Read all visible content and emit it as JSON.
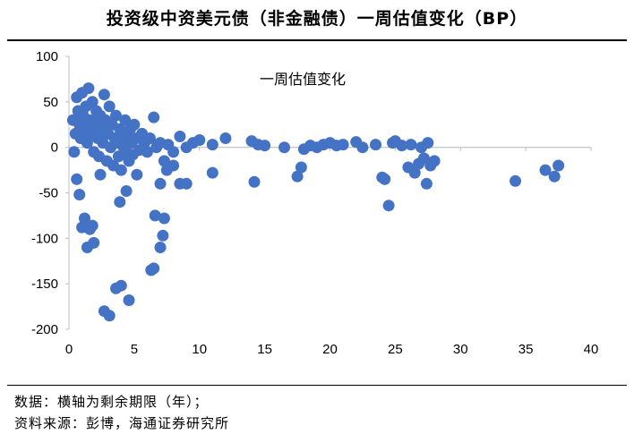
{
  "header": {
    "title": "投资级中资美元债（非金融债）一周估值变化（BP）"
  },
  "footer": {
    "note1": "数据：横轴为剩余期限（年）；",
    "note2": "资料来源：彭博，海通证券研究所"
  },
  "chart_data": {
    "type": "scatter",
    "title": "一周估值变化",
    "xlabel": "",
    "ylabel": "",
    "xlim": [
      0,
      40
    ],
    "ylim": [
      -200,
      100
    ],
    "xticks": [
      0,
      5,
      10,
      15,
      20,
      25,
      30,
      35,
      40
    ],
    "yticks": [
      100,
      50,
      0,
      -50,
      -100,
      -150,
      -200
    ],
    "grid": false,
    "legend": "none",
    "marker_color": "#4472c4",
    "series": [
      {
        "points": [
          [
            0.3,
            30
          ],
          [
            0.5,
            15
          ],
          [
            0.6,
            55
          ],
          [
            0.7,
            40
          ],
          [
            0.8,
            25
          ],
          [
            0.9,
            10
          ],
          [
            1.0,
            60
          ],
          [
            1.1,
            35
          ],
          [
            1.2,
            20
          ],
          [
            1.3,
            45
          ],
          [
            1.4,
            5
          ],
          [
            1.5,
            65
          ],
          [
            1.6,
            30
          ],
          [
            1.7,
            15
          ],
          [
            1.8,
            50
          ],
          [
            1.9,
            -5
          ],
          [
            2.0,
            25
          ],
          [
            2.1,
            40
          ],
          [
            2.2,
            10
          ],
          [
            2.3,
            -10
          ],
          [
            2.4,
            35
          ],
          [
            2.5,
            20
          ],
          [
            2.6,
            5
          ],
          [
            2.7,
            58
          ],
          [
            2.8,
            30
          ],
          [
            2.9,
            -15
          ],
          [
            3.0,
            15
          ],
          [
            3.1,
            45
          ],
          [
            3.2,
            0
          ],
          [
            3.3,
            25
          ],
          [
            3.4,
            -20
          ],
          [
            3.5,
            10
          ],
          [
            3.6,
            35
          ],
          [
            3.7,
            5
          ],
          [
            3.8,
            -10
          ],
          [
            3.9,
            20
          ],
          [
            4.0,
            -25
          ],
          [
            4.1,
            15
          ],
          [
            4.2,
            0
          ],
          [
            4.3,
            30
          ],
          [
            4.4,
            -5
          ],
          [
            4.5,
            10
          ],
          [
            4.6,
            -15
          ],
          [
            4.7,
            20
          ],
          [
            4.8,
            5
          ],
          [
            4.9,
            -8
          ],
          [
            5.0,
            25
          ],
          [
            5.2,
            10
          ],
          [
            5.4,
            -3
          ],
          [
            5.6,
            15
          ],
          [
            5.8,
            5
          ],
          [
            6.0,
            -5
          ],
          [
            6.2,
            10
          ],
          [
            6.5,
            33
          ],
          [
            6.7,
            0
          ],
          [
            7.0,
            5
          ],
          [
            7.3,
            -15
          ],
          [
            7.6,
            3
          ],
          [
            8.0,
            -5
          ],
          [
            8.5,
            12
          ],
          [
            9.0,
            0
          ],
          [
            9.5,
            5
          ],
          [
            10.0,
            8
          ],
          [
            11.0,
            3
          ],
          [
            12.0,
            10
          ],
          [
            14.0,
            7
          ],
          [
            14.5,
            3
          ],
          [
            15.0,
            2
          ],
          [
            0.4,
            -5
          ],
          [
            0.6,
            -35
          ],
          [
            0.8,
            -52
          ],
          [
            1.0,
            -88
          ],
          [
            1.2,
            -78
          ],
          [
            1.4,
            -110
          ],
          [
            1.6,
            -90
          ],
          [
            1.8,
            -86
          ],
          [
            1.9,
            -105
          ],
          [
            2.4,
            -30
          ],
          [
            2.7,
            -180
          ],
          [
            3.1,
            -185
          ],
          [
            3.6,
            -155
          ],
          [
            3.9,
            -60
          ],
          [
            4.0,
            -152
          ],
          [
            4.4,
            -48
          ],
          [
            4.6,
            -168
          ],
          [
            5.2,
            -30
          ],
          [
            6.3,
            -135
          ],
          [
            6.5,
            -133
          ],
          [
            6.6,
            -75
          ],
          [
            7.0,
            -110
          ],
          [
            7.2,
            -97
          ],
          [
            7.3,
            -78
          ],
          [
            7.0,
            -40
          ],
          [
            7.5,
            -25
          ],
          [
            8.0,
            -20
          ],
          [
            8.5,
            -40
          ],
          [
            9.0,
            -40
          ],
          [
            11.0,
            -28
          ],
          [
            14.2,
            -38
          ],
          [
            17.5,
            -32
          ],
          [
            17.8,
            -22
          ],
          [
            16.5,
            0
          ],
          [
            18.0,
            -2
          ],
          [
            18.5,
            2
          ],
          [
            19.0,
            0
          ],
          [
            19.5,
            3
          ],
          [
            20.0,
            5
          ],
          [
            20.5,
            2
          ],
          [
            21.0,
            3
          ],
          [
            22.0,
            6
          ],
          [
            22.5,
            0
          ],
          [
            23.5,
            3
          ],
          [
            24.0,
            -33
          ],
          [
            24.2,
            -35
          ],
          [
            24.5,
            -64
          ],
          [
            24.8,
            5
          ],
          [
            25.0,
            7
          ],
          [
            25.5,
            2
          ],
          [
            26.0,
            -22
          ],
          [
            26.2,
            3
          ],
          [
            26.5,
            -28
          ],
          [
            26.8,
            -18
          ],
          [
            27.0,
            0
          ],
          [
            27.2,
            -12
          ],
          [
            27.4,
            -40
          ],
          [
            27.5,
            5
          ],
          [
            27.7,
            -20
          ],
          [
            28.0,
            -15
          ],
          [
            34.2,
            -37
          ],
          [
            36.5,
            -25
          ],
          [
            37.2,
            -32
          ],
          [
            37.5,
            -20
          ]
        ]
      }
    ]
  }
}
